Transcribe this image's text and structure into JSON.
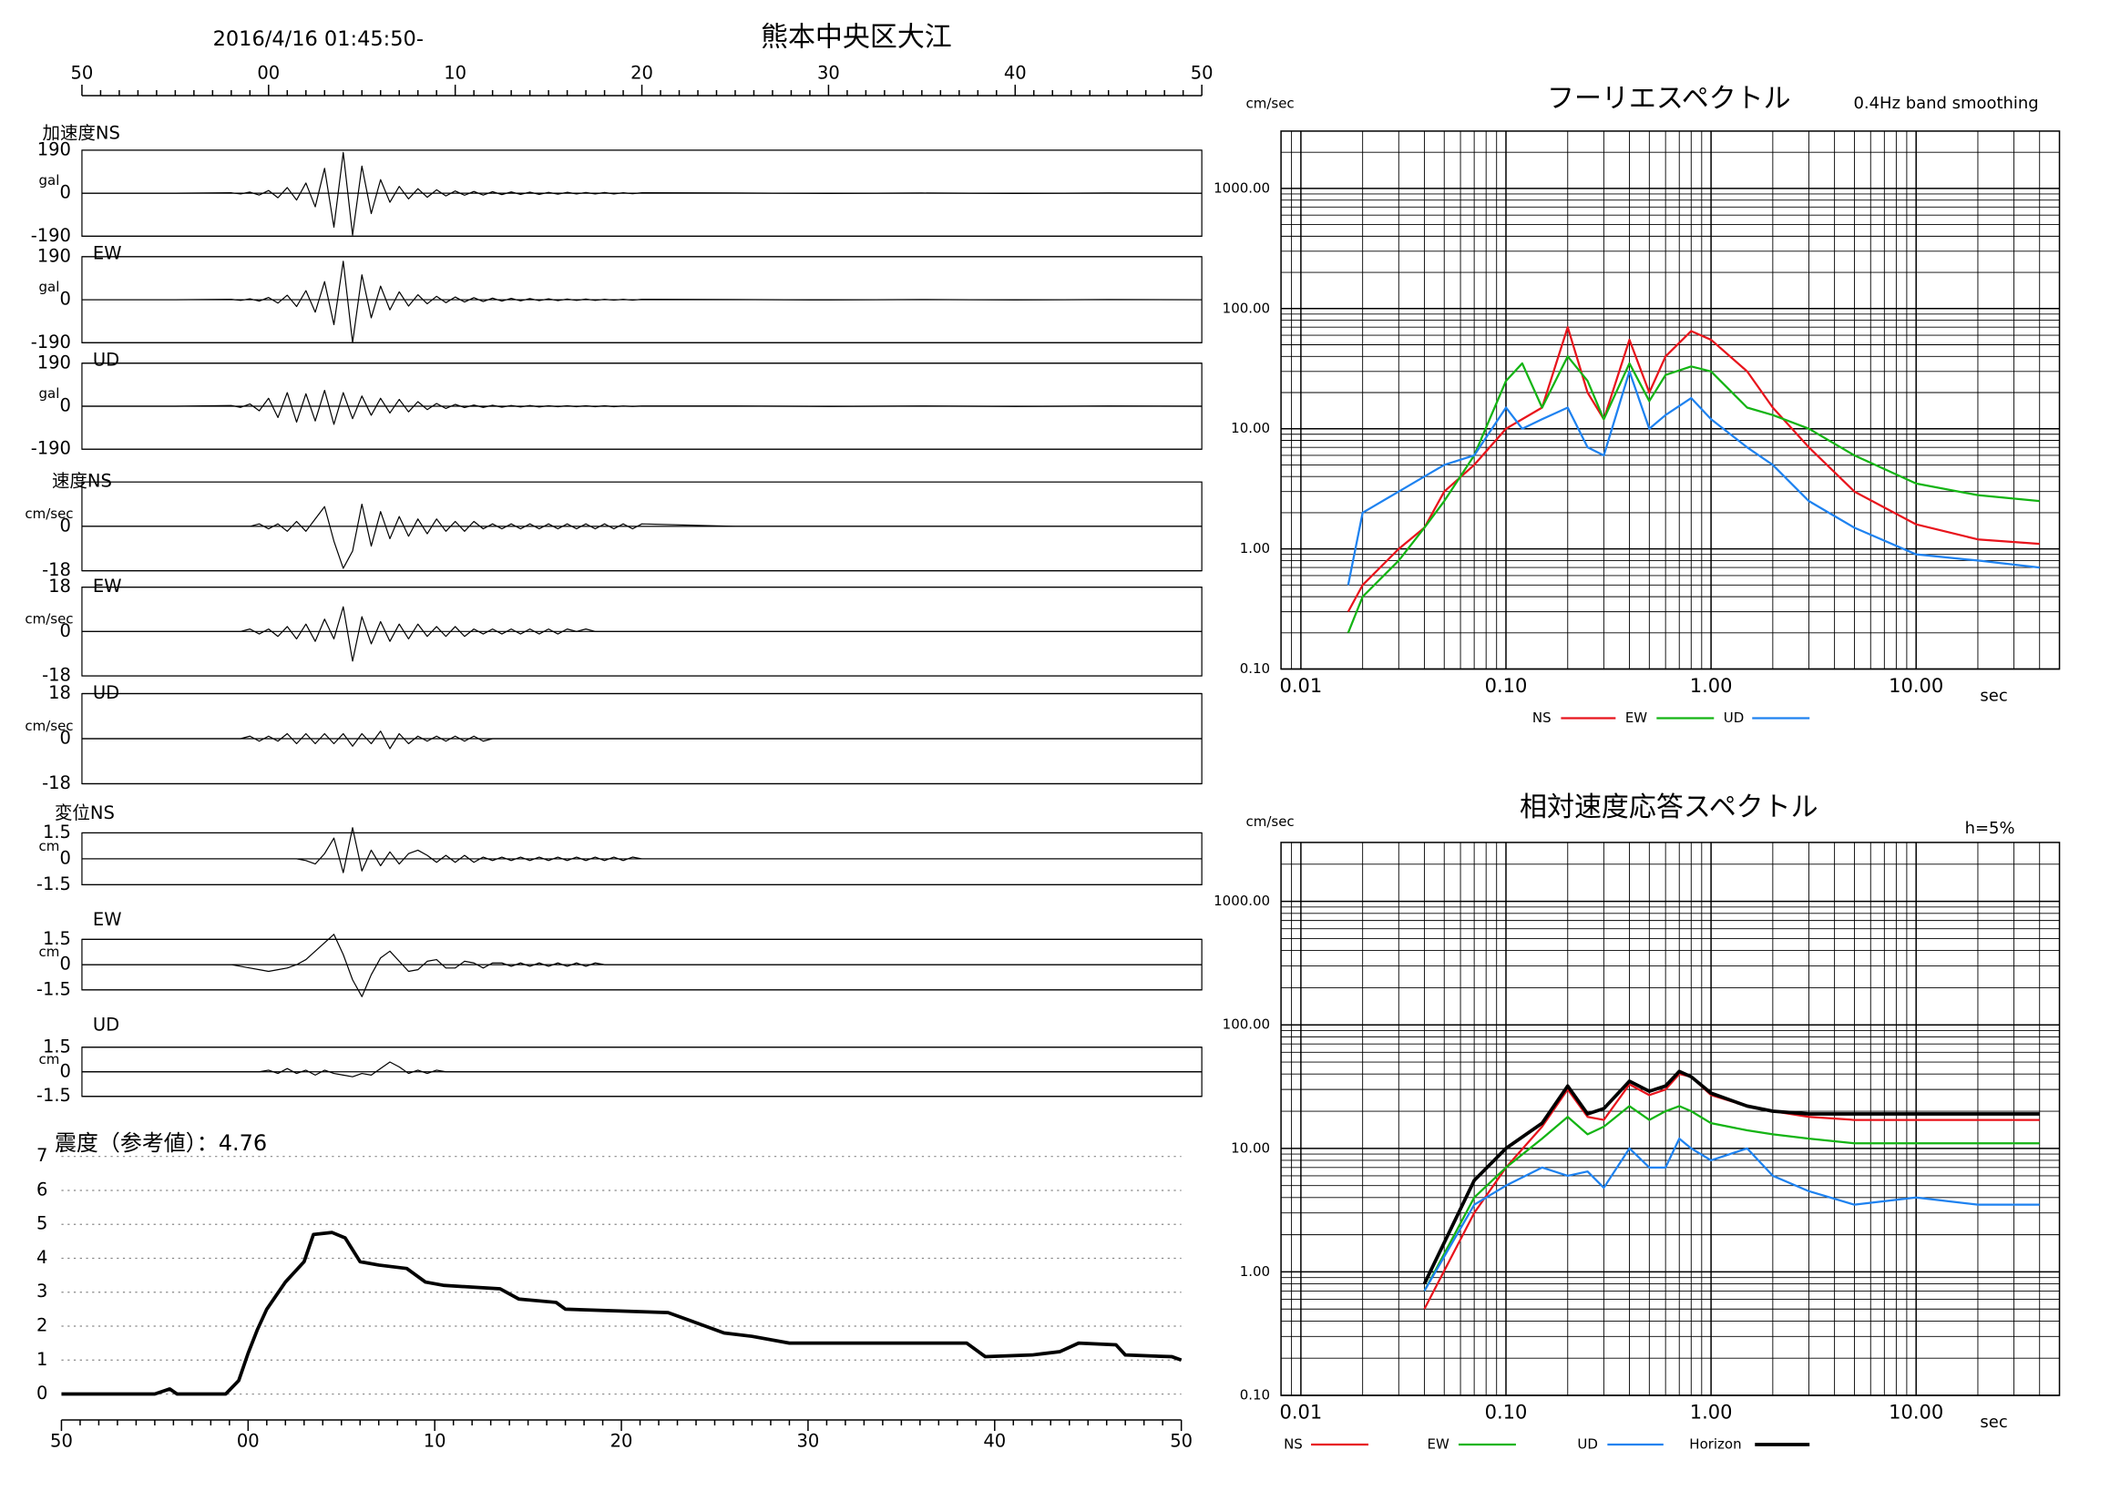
{
  "chart_data": [
    {
      "type": "waveform",
      "title": "2016/4/16 01:45:50-",
      "subtitle": "熊本中央区大江",
      "xlim": [
        0,
        60
      ],
      "xticks": [
        {
          "value": 0,
          "label": "50"
        },
        {
          "value": 10,
          "label": "00"
        },
        {
          "value": 20,
          "label": "10"
        },
        {
          "value": 30,
          "label": "20"
        },
        {
          "value": 40,
          "label": "30"
        },
        {
          "value": 50,
          "label": "40"
        },
        {
          "value": 60,
          "label": "50"
        }
      ],
      "x": [
        0,
        5,
        8,
        8.5,
        9,
        9.5,
        10,
        10.5,
        11,
        11.5,
        12,
        12.5,
        13,
        13.5,
        14,
        14.5,
        15,
        15.5,
        16,
        16.5,
        17,
        17.5,
        18,
        18.5,
        19,
        19.5,
        20,
        20.5,
        21,
        21.5,
        22,
        22.5,
        23,
        23.5,
        24,
        24.5,
        25,
        25.5,
        26,
        26.5,
        27,
        27.5,
        28,
        28.5,
        29,
        29.5,
        30,
        35,
        40,
        45,
        50,
        55,
        60
      ],
      "panels": [
        {
          "label": "加速度NS",
          "unit": "gal",
          "ylim": [
            -190,
            190
          ],
          "yticks": [
            -190,
            0,
            190
          ],
          "values": [
            0,
            0,
            2,
            -3,
            5,
            -8,
            12,
            -20,
            25,
            -30,
            45,
            -60,
            110,
            -150,
            180,
            -185,
            120,
            -90,
            60,
            -40,
            30,
            -25,
            20,
            -18,
            15,
            -12,
            10,
            -9,
            8,
            -8,
            7,
            -6,
            6,
            -5,
            5,
            -5,
            4,
            -4,
            4,
            -3,
            3,
            -3,
            3,
            -3,
            2,
            -2,
            2,
            1,
            -1,
            1,
            -1,
            1,
            0
          ]
        },
        {
          "label": "EW",
          "unit": "gal",
          "ylim": [
            -190,
            190
          ],
          "yticks": [
            -190,
            0,
            190
          ],
          "values": [
            0,
            0,
            2,
            -3,
            4,
            -6,
            10,
            -15,
            20,
            -30,
            40,
            -55,
            80,
            -110,
            170,
            -190,
            110,
            -80,
            60,
            -45,
            35,
            -28,
            22,
            -18,
            15,
            -13,
            12,
            -10,
            9,
            -8,
            7,
            -6,
            6,
            -5,
            5,
            -4,
            4,
            -4,
            3,
            -3,
            3,
            -3,
            2,
            -2,
            2,
            -2,
            2,
            1,
            -1,
            1,
            -1,
            1,
            0
          ]
        },
        {
          "label": "UD",
          "unit": "gal",
          "ylim": [
            -190,
            190
          ],
          "yticks": [
            -190,
            0,
            190
          ],
          "values": [
            0,
            0,
            3,
            -5,
            10,
            -20,
            35,
            -50,
            60,
            -70,
            55,
            -65,
            70,
            -80,
            60,
            -55,
            45,
            -40,
            35,
            -30,
            30,
            -25,
            20,
            -15,
            12,
            -10,
            8,
            -6,
            5,
            -5,
            4,
            -4,
            3,
            -3,
            3,
            -3,
            2,
            -2,
            2,
            -2,
            2,
            -2,
            2,
            -2,
            1,
            -1,
            1,
            1,
            -1,
            1,
            -1,
            1,
            0
          ]
        },
        {
          "label": "速度NS",
          "unit": "cm/sec",
          "ylim": [
            -18,
            18
          ],
          "yticks": [
            -18,
            0
          ],
          "values": [
            0,
            0,
            0,
            0,
            0,
            1,
            -1,
            1,
            -2,
            2,
            -2,
            3,
            8,
            -6,
            -17,
            -10,
            9,
            -8,
            6,
            -5,
            4,
            -4,
            3,
            -3,
            3,
            -2,
            2,
            -2,
            2,
            -1,
            1,
            -1,
            1,
            -1,
            1,
            -1,
            1,
            -1,
            1,
            -1,
            1,
            -1,
            1,
            -1,
            1,
            -1,
            1,
            0,
            0,
            0,
            0,
            0,
            0
          ]
        },
        {
          "label": "EW",
          "unit": "cm/sec",
          "ylim": [
            -18,
            18
          ],
          "yticks": [
            -18,
            0,
            18
          ],
          "values": [
            0,
            0,
            0,
            0,
            1,
            -1,
            1,
            -2,
            2,
            -3,
            3,
            -4,
            5,
            -3,
            10,
            -12,
            6,
            -5,
            4,
            -4,
            3,
            -3,
            3,
            -2,
            2,
            -2,
            2,
            -2,
            1,
            -1,
            1,
            -1,
            1,
            -1,
            1,
            -1,
            1,
            -1,
            1,
            0,
            1,
            0,
            0,
            0,
            0,
            0,
            0,
            0,
            0,
            0,
            0,
            0,
            0
          ]
        },
        {
          "label": "UD",
          "unit": "cm/sec",
          "ylim": [
            -18,
            18
          ],
          "yticks": [
            -18,
            0,
            18
          ],
          "values": [
            0,
            0,
            0,
            0,
            1,
            -1,
            1,
            -1,
            2,
            -2,
            2,
            -2,
            2,
            -2,
            2,
            -3,
            2,
            -2,
            3,
            -4,
            2,
            -2,
            1,
            -1,
            1,
            -1,
            1,
            -1,
            1,
            -1,
            0,
            0,
            0,
            0,
            0,
            0,
            0,
            0,
            0,
            0,
            0,
            0,
            0,
            0,
            0,
            0,
            0,
            0,
            0,
            0,
            0,
            0,
            0
          ]
        },
        {
          "label": "変位NS",
          "unit": "cm",
          "ylim": [
            -1.5,
            1.5
          ],
          "yticks": [
            -1.5,
            0,
            1.5
          ],
          "values": [
            0,
            0,
            0,
            0,
            0,
            0,
            0,
            0,
            0,
            0,
            -0.1,
            -0.3,
            0.3,
            1.2,
            -0.8,
            1.8,
            -0.7,
            0.5,
            -0.4,
            0.4,
            -0.3,
            0.3,
            0.5,
            0.2,
            -0.2,
            0.2,
            -0.2,
            0.2,
            -0.2,
            0.1,
            -0.1,
            0.1,
            -0.1,
            0.1,
            -0.1,
            0.1,
            -0.1,
            0.1,
            -0.1,
            0.1,
            -0.1,
            0.1,
            -0.1,
            0.1,
            -0.1,
            0.1,
            0,
            0,
            0,
            0,
            0,
            0,
            0
          ]
        },
        {
          "label": "EW",
          "unit": "cm",
          "ylim": [
            -1.5,
            1.5
          ],
          "yticks": [
            -1.5,
            0,
            1.5
          ],
          "values": [
            0,
            0,
            0,
            -0.1,
            -0.2,
            -0.3,
            -0.4,
            -0.3,
            -0.2,
            0,
            0.3,
            0.8,
            1.3,
            1.8,
            0.6,
            -0.9,
            -1.9,
            -0.6,
            0.4,
            0.8,
            0.2,
            -0.4,
            -0.3,
            0.2,
            0.3,
            -0.2,
            -0.2,
            0.2,
            0.1,
            -0.2,
            0.1,
            0.1,
            -0.1,
            0.1,
            -0.1,
            0.1,
            -0.1,
            0.1,
            -0.1,
            0.1,
            -0.1,
            0.1,
            0,
            0,
            0,
            0,
            0,
            0,
            0,
            0,
            0,
            0,
            0
          ]
        },
        {
          "label": "UD",
          "unit": "cm",
          "ylim": [
            -1.5,
            1.5
          ],
          "yticks": [
            -1.5,
            0,
            1.5
          ],
          "values": [
            0,
            0,
            0,
            0,
            0,
            0,
            0.1,
            -0.1,
            0.2,
            -0.1,
            0.1,
            -0.2,
            0.1,
            -0.1,
            -0.2,
            -0.3,
            -0.1,
            -0.2,
            0.2,
            0.6,
            0.3,
            -0.1,
            0.1,
            -0.1,
            0.1,
            0,
            0,
            0,
            0,
            0,
            0,
            0,
            0,
            0,
            0,
            0,
            0,
            0,
            0,
            0,
            0,
            0,
            0,
            0,
            0,
            0,
            0,
            0,
            0,
            0,
            0,
            0,
            0
          ]
        }
      ]
    },
    {
      "type": "line",
      "title": "震度（参考値）：4.76",
      "color": "#000000",
      "xlim": [
        0,
        60
      ],
      "xticks": [
        {
          "value": 0,
          "label": "50"
        },
        {
          "value": 10,
          "label": "00"
        },
        {
          "value": 20,
          "label": "10"
        },
        {
          "value": 30,
          "label": "20"
        },
        {
          "value": 40,
          "label": "30"
        },
        {
          "value": 50,
          "label": "40"
        },
        {
          "value": 60,
          "label": "50"
        }
      ],
      "ylim": [
        0,
        7
      ],
      "yticks": [
        0,
        1,
        2,
        3,
        4,
        5,
        6,
        7
      ],
      "grid": true,
      "x": [
        0,
        5,
        5.8,
        6.2,
        8.8,
        9.5,
        10,
        10.5,
        11,
        12,
        13,
        13.5,
        14.5,
        15.2,
        16,
        17,
        18.5,
        19.5,
        20.5,
        23.5,
        24.5,
        26.5,
        27,
        32.5,
        34,
        35.5,
        37,
        39,
        48.5,
        49.5,
        52,
        53.5,
        54.5,
        56.5,
        57,
        59.5,
        60
      ],
      "values": [
        0,
        0,
        0.15,
        0,
        0,
        0.4,
        1.2,
        1.9,
        2.5,
        3.3,
        3.9,
        4.7,
        4.76,
        4.6,
        3.9,
        3.8,
        3.7,
        3.3,
        3.2,
        3.1,
        2.8,
        2.7,
        2.5,
        2.4,
        2.1,
        1.8,
        1.7,
        1.5,
        1.5,
        1.1,
        1.15,
        1.25,
        1.5,
        1.45,
        1.15,
        1.1,
        1.0
      ]
    },
    {
      "type": "loglog",
      "title": "フーリエスペクトル",
      "subtitle": "0.4Hz band smoothing",
      "ylabel": "cm/sec",
      "xlabel": "sec",
      "xlim": [
        0.008,
        50
      ],
      "ylim": [
        0.1,
        3000
      ],
      "grid": true,
      "xticks": [
        0.01,
        {
          "value": 0.1,
          "label": "0.10"
        },
        {
          "value": 1,
          "label": "1.00"
        },
        {
          "value": 10,
          "label": "10.00"
        }
      ],
      "yticks": [
        {
          "value": 0.1,
          "label": "0.10"
        },
        {
          "value": 1,
          "label": "1.00"
        },
        {
          "value": 10,
          "label": "10.00"
        },
        {
          "value": 100,
          "label": "100.00"
        },
        {
          "value": 1000,
          "label": "1000.00"
        }
      ],
      "x": [
        0.017,
        0.02,
        0.03,
        0.04,
        0.05,
        0.07,
        0.1,
        0.12,
        0.15,
        0.2,
        0.25,
        0.3,
        0.4,
        0.5,
        0.6,
        0.8,
        1.0,
        1.5,
        2,
        3,
        5,
        10,
        20,
        40
      ],
      "series": [
        {
          "name": "NS",
          "color": "#e8141c",
          "values": [
            0.3,
            0.5,
            1.0,
            1.5,
            3,
            5,
            10,
            12,
            15,
            70,
            20,
            12,
            55,
            20,
            40,
            65,
            55,
            30,
            15,
            7,
            3,
            1.6,
            1.2,
            1.1
          ]
        },
        {
          "name": "EW",
          "color": "#14b414",
          "values": [
            0.2,
            0.4,
            0.8,
            1.5,
            2.5,
            6,
            25,
            35,
            15,
            40,
            25,
            12,
            35,
            17,
            28,
            33,
            30,
            15,
            13,
            10,
            6,
            3.5,
            2.8,
            2.5
          ]
        },
        {
          "name": "UD",
          "color": "#1e82f0",
          "values": [
            0.5,
            2,
            3,
            4,
            5,
            6,
            15,
            10,
            12,
            15,
            7,
            6,
            30,
            10,
            13,
            18,
            12,
            7,
            5,
            2.5,
            1.5,
            0.9,
            0.8,
            0.7
          ]
        }
      ]
    },
    {
      "type": "loglog",
      "title": "相対速度応答スペクトル",
      "subtitle": "h=5%",
      "ylabel": "cm/sec",
      "xlabel": "sec",
      "xlim": [
        0.008,
        50
      ],
      "ylim": [
        0.1,
        3000
      ],
      "grid": true,
      "xticks": [
        0.01,
        {
          "value": 0.1,
          "label": "0.10"
        },
        {
          "value": 1,
          "label": "1.00"
        },
        {
          "value": 10,
          "label": "10.00"
        }
      ],
      "yticks": [
        {
          "value": 0.1,
          "label": "0.10"
        },
        {
          "value": 1,
          "label": "1.00"
        },
        {
          "value": 10,
          "label": "10.00"
        },
        {
          "value": 100,
          "label": "100.00"
        },
        {
          "value": 1000,
          "label": "1000.00"
        }
      ],
      "x": [
        0.04,
        0.07,
        0.1,
        0.15,
        0.2,
        0.25,
        0.3,
        0.4,
        0.5,
        0.6,
        0.7,
        0.8,
        1.0,
        1.5,
        2,
        3,
        5,
        10,
        20,
        40
      ],
      "series": [
        {
          "name": "NS",
          "color": "#e8141c",
          "values": [
            0.5,
            3,
            7,
            15,
            30,
            18,
            17,
            33,
            27,
            30,
            40,
            38,
            27,
            22,
            20,
            18,
            17,
            17,
            17,
            17
          ]
        },
        {
          "name": "EW",
          "color": "#14b414",
          "values": [
            0.7,
            4,
            7,
            12,
            18,
            13,
            15,
            22,
            17,
            20,
            22,
            20,
            16,
            14,
            13,
            12,
            11,
            11,
            11,
            11
          ]
        },
        {
          "name": "UD",
          "color": "#1e82f0",
          "values": [
            0.7,
            3.5,
            5,
            7,
            6,
            6.5,
            4.8,
            10,
            7,
            7,
            12,
            10,
            8,
            10,
            6,
            4.5,
            3.5,
            4,
            3.5,
            3.5
          ]
        },
        {
          "name": "Horizon",
          "color": "#000000",
          "width": 2.5,
          "values": [
            0.8,
            5.5,
            10,
            16,
            32,
            19,
            21,
            35,
            29,
            32,
            42,
            38,
            28,
            22,
            20,
            19,
            19,
            19,
            19,
            19
          ]
        }
      ]
    }
  ]
}
